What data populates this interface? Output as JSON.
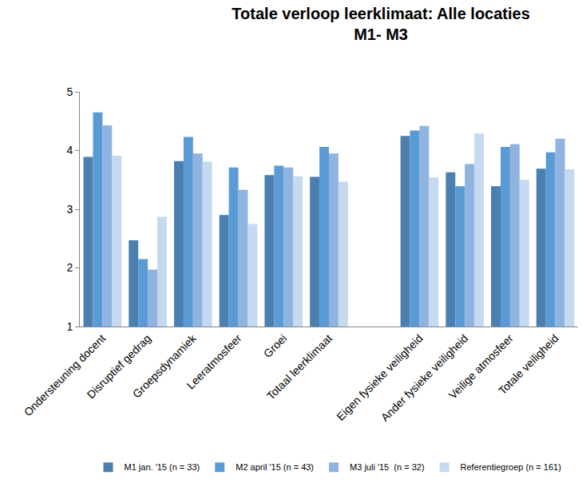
{
  "chart_data": {
    "type": "bar",
    "title": "Totale verloop leerklimaat: Alle locaties",
    "subtitle": "M1- M3",
    "categories": [
      "Ondersteuning docent",
      "Disruptief gedrag",
      "Groepsdynamiek",
      "Leeratmosfeer",
      "Groei",
      "Totaal leerklimaat",
      null,
      "Eigen fysieke veiligheid",
      "Ander fysieke veiligheid",
      "Veilige atmosfeer",
      "Totale veiligheid"
    ],
    "series": [
      {
        "name": "M1 jan. '15 (n = 33)",
        "color": "#4a7fb0",
        "values": [
          3.89,
          2.47,
          3.82,
          2.9,
          3.58,
          3.55,
          null,
          4.25,
          3.63,
          3.39,
          3.69
        ]
      },
      {
        "name": "M2 april '15 (n = 43)",
        "color": "#5b9bd5",
        "values": [
          4.65,
          2.15,
          4.23,
          3.71,
          3.74,
          4.06,
          null,
          4.34,
          3.39,
          4.06,
          3.97
        ]
      },
      {
        "name": "M3 juli '15  (n = 32)",
        "color": "#8fb4e0",
        "values": [
          4.43,
          1.97,
          3.95,
          3.33,
          3.71,
          3.95,
          null,
          4.42,
          3.77,
          4.11,
          4.2
        ]
      },
      {
        "name": "Referentiegroep (n = 161)",
        "color": "#c5d9f0",
        "values": [
          3.91,
          2.87,
          3.81,
          2.75,
          3.56,
          3.47,
          null,
          3.54,
          4.29,
          3.5,
          3.68
        ]
      }
    ],
    "ylim": [
      1,
      5
    ],
    "yticks": [
      1,
      2,
      3,
      4,
      5
    ],
    "grid": false,
    "legend": "bottom"
  }
}
